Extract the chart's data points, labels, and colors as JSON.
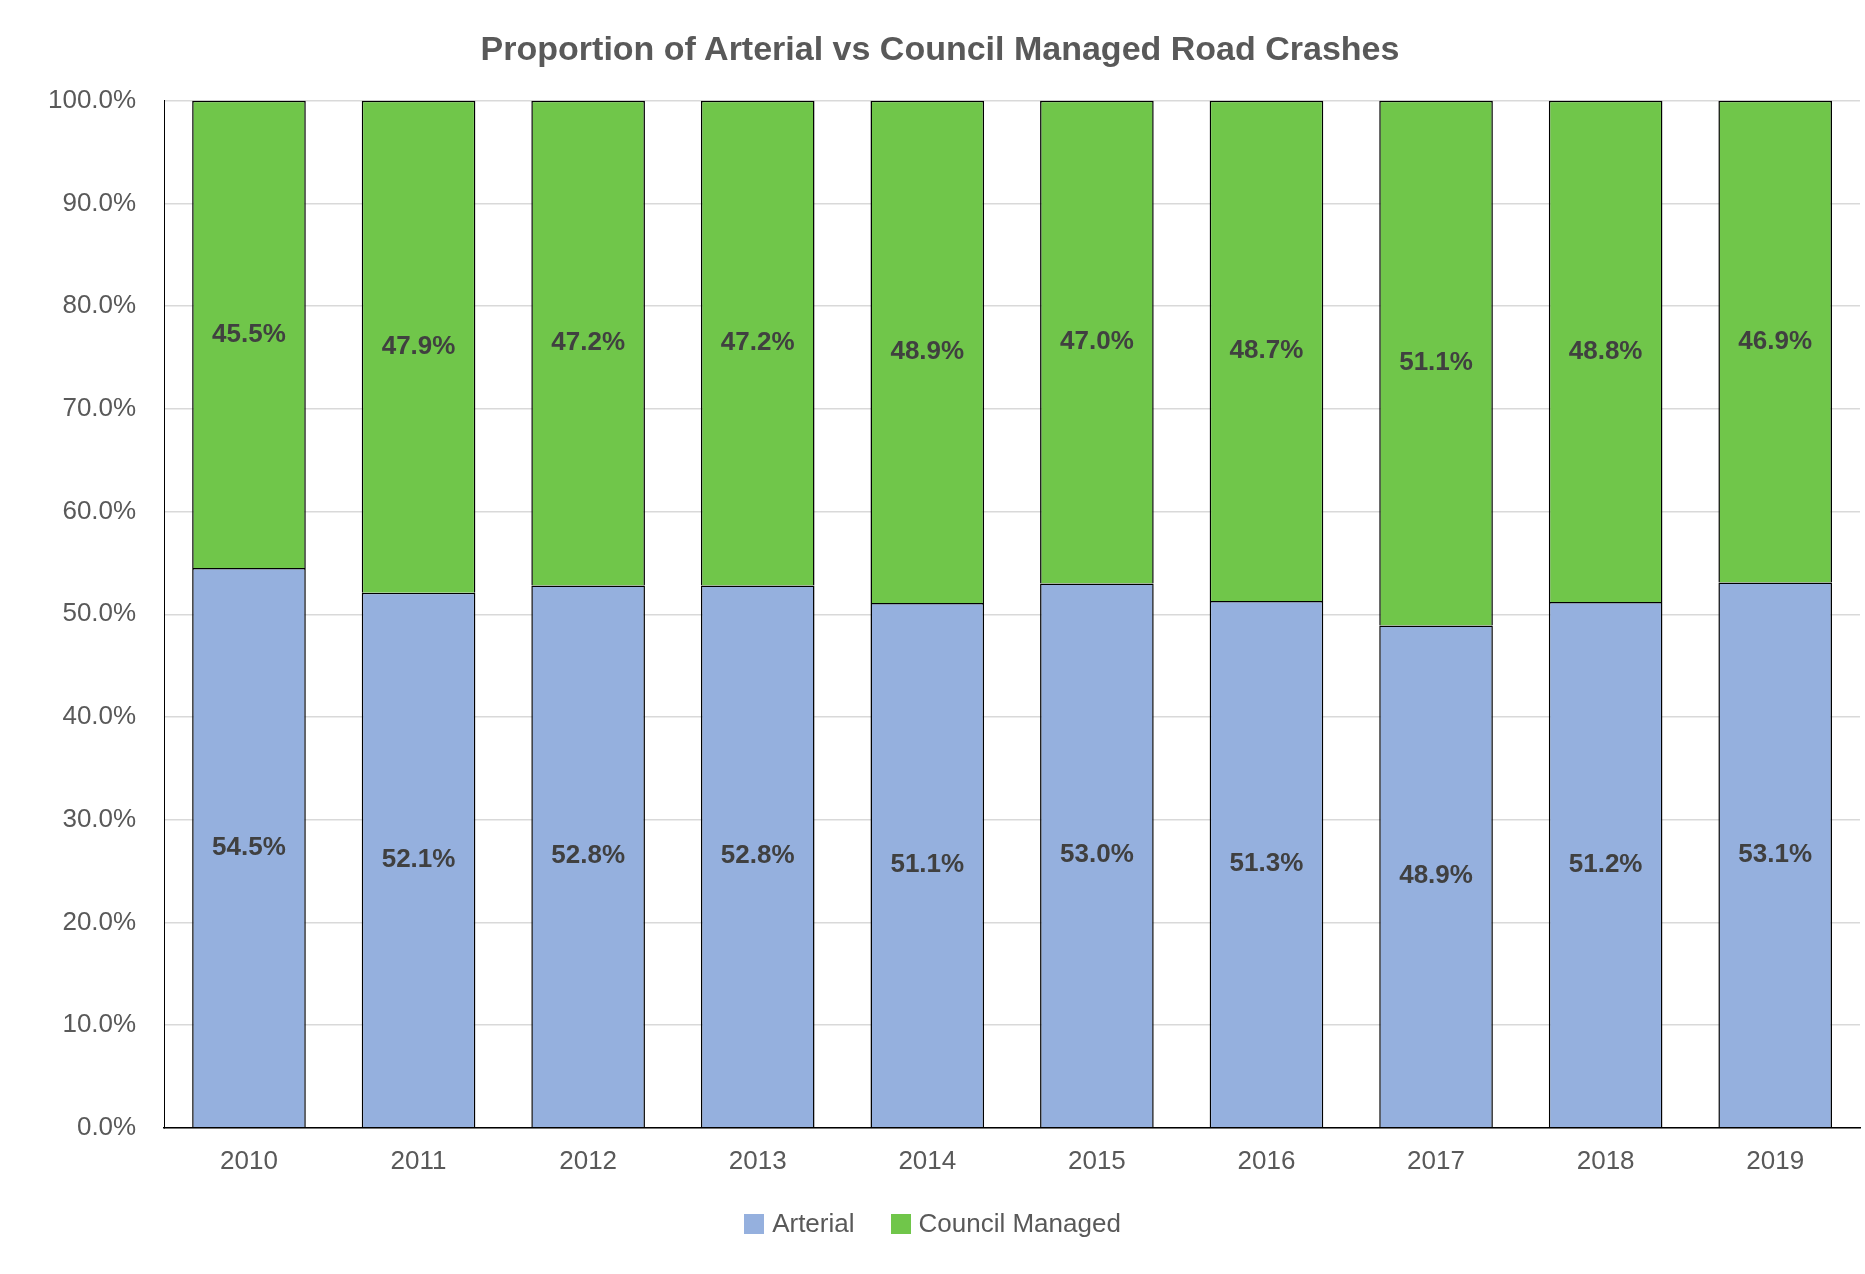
{
  "chart_data": {
    "type": "bar",
    "title": "Proportion of Arterial vs Council Managed Road Crashes",
    "categories": [
      "2010",
      "2011",
      "2012",
      "2013",
      "2014",
      "2015",
      "2016",
      "2017",
      "2018",
      "2019"
    ],
    "series": [
      {
        "name": "Arterial",
        "color": "#95b0de",
        "values": [
          54.5,
          52.1,
          52.8,
          52.8,
          51.1,
          53.0,
          51.3,
          48.9,
          51.2,
          53.1
        ],
        "value_labels": [
          "54.5%",
          "52.1%",
          "52.8%",
          "52.8%",
          "51.1%",
          "53.0%",
          "51.3%",
          "48.9%",
          "51.2%",
          "53.1%"
        ]
      },
      {
        "name": "Council Managed",
        "color": "#70c64a",
        "values": [
          45.5,
          47.9,
          47.2,
          47.2,
          48.9,
          47.0,
          48.7,
          51.1,
          48.8,
          46.9
        ],
        "value_labels": [
          "45.5%",
          "47.9%",
          "47.2%",
          "47.2%",
          "48.9%",
          "47.0%",
          "48.7%",
          "51.1%",
          "48.8%",
          "46.9%"
        ]
      }
    ],
    "stacked": true,
    "ylim": [
      0,
      100
    ],
    "yticks": [
      {
        "value": 0,
        "label": "0.0%"
      },
      {
        "value": 10,
        "label": "10.0%"
      },
      {
        "value": 20,
        "label": "20.0%"
      },
      {
        "value": 30,
        "label": "30.0%"
      },
      {
        "value": 40,
        "label": "40.0%"
      },
      {
        "value": 50,
        "label": "50.0%"
      },
      {
        "value": 60,
        "label": "60.0%"
      },
      {
        "value": 70,
        "label": "70.0%"
      },
      {
        "value": 80,
        "label": "80.0%"
      },
      {
        "value": 90,
        "label": "90.0%"
      },
      {
        "value": 100,
        "label": "100.0%"
      }
    ],
    "grid": "y",
    "legend": "bottom"
  }
}
